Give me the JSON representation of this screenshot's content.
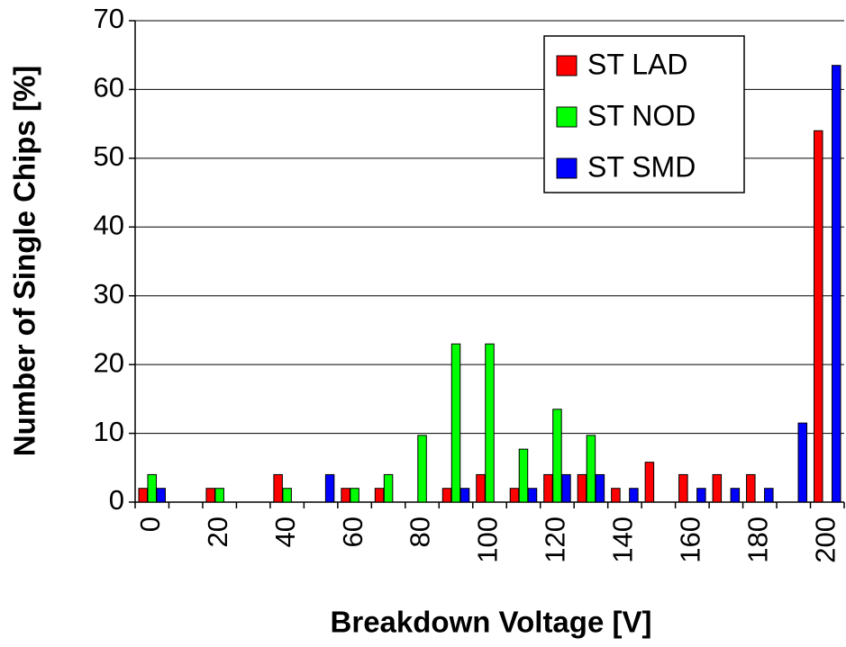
{
  "chart_data": {
    "type": "bar",
    "xlabel": "Breakdown Voltage [V]",
    "ylabel": "Number of Single Chips [%]",
    "categories": [
      "0",
      null,
      "20",
      null,
      "40",
      null,
      "60",
      null,
      "80",
      null,
      "100",
      null,
      "120",
      null,
      "140",
      null,
      "160",
      null,
      "180",
      null,
      "200"
    ],
    "series": [
      {
        "name": "ST LAD",
        "color": "#ff0000",
        "values": [
          2,
          0,
          2,
          0,
          4,
          0,
          2,
          2,
          0,
          2,
          4,
          2,
          4,
          4,
          2,
          5.8,
          4,
          4,
          4,
          0,
          54
        ]
      },
      {
        "name": "ST NOD",
        "color": "#00ff00",
        "values": [
          4,
          0,
          2,
          0,
          2,
          0,
          2,
          4,
          9.7,
          23,
          23,
          7.7,
          13.5,
          9.7,
          0,
          0,
          0,
          0,
          0,
          0,
          0
        ]
      },
      {
        "name": "ST SMD",
        "color": "#0000ff",
        "values": [
          2,
          0,
          0,
          0,
          0,
          4,
          0,
          0,
          0,
          2,
          0,
          2,
          4,
          4,
          2,
          0,
          2,
          2,
          2,
          11.5,
          63.5
        ]
      }
    ],
    "ylim": [
      0,
      70
    ],
    "yticks": [
      0,
      10,
      20,
      30,
      40,
      50,
      60,
      70
    ],
    "grid": true,
    "legend": "upper right"
  }
}
